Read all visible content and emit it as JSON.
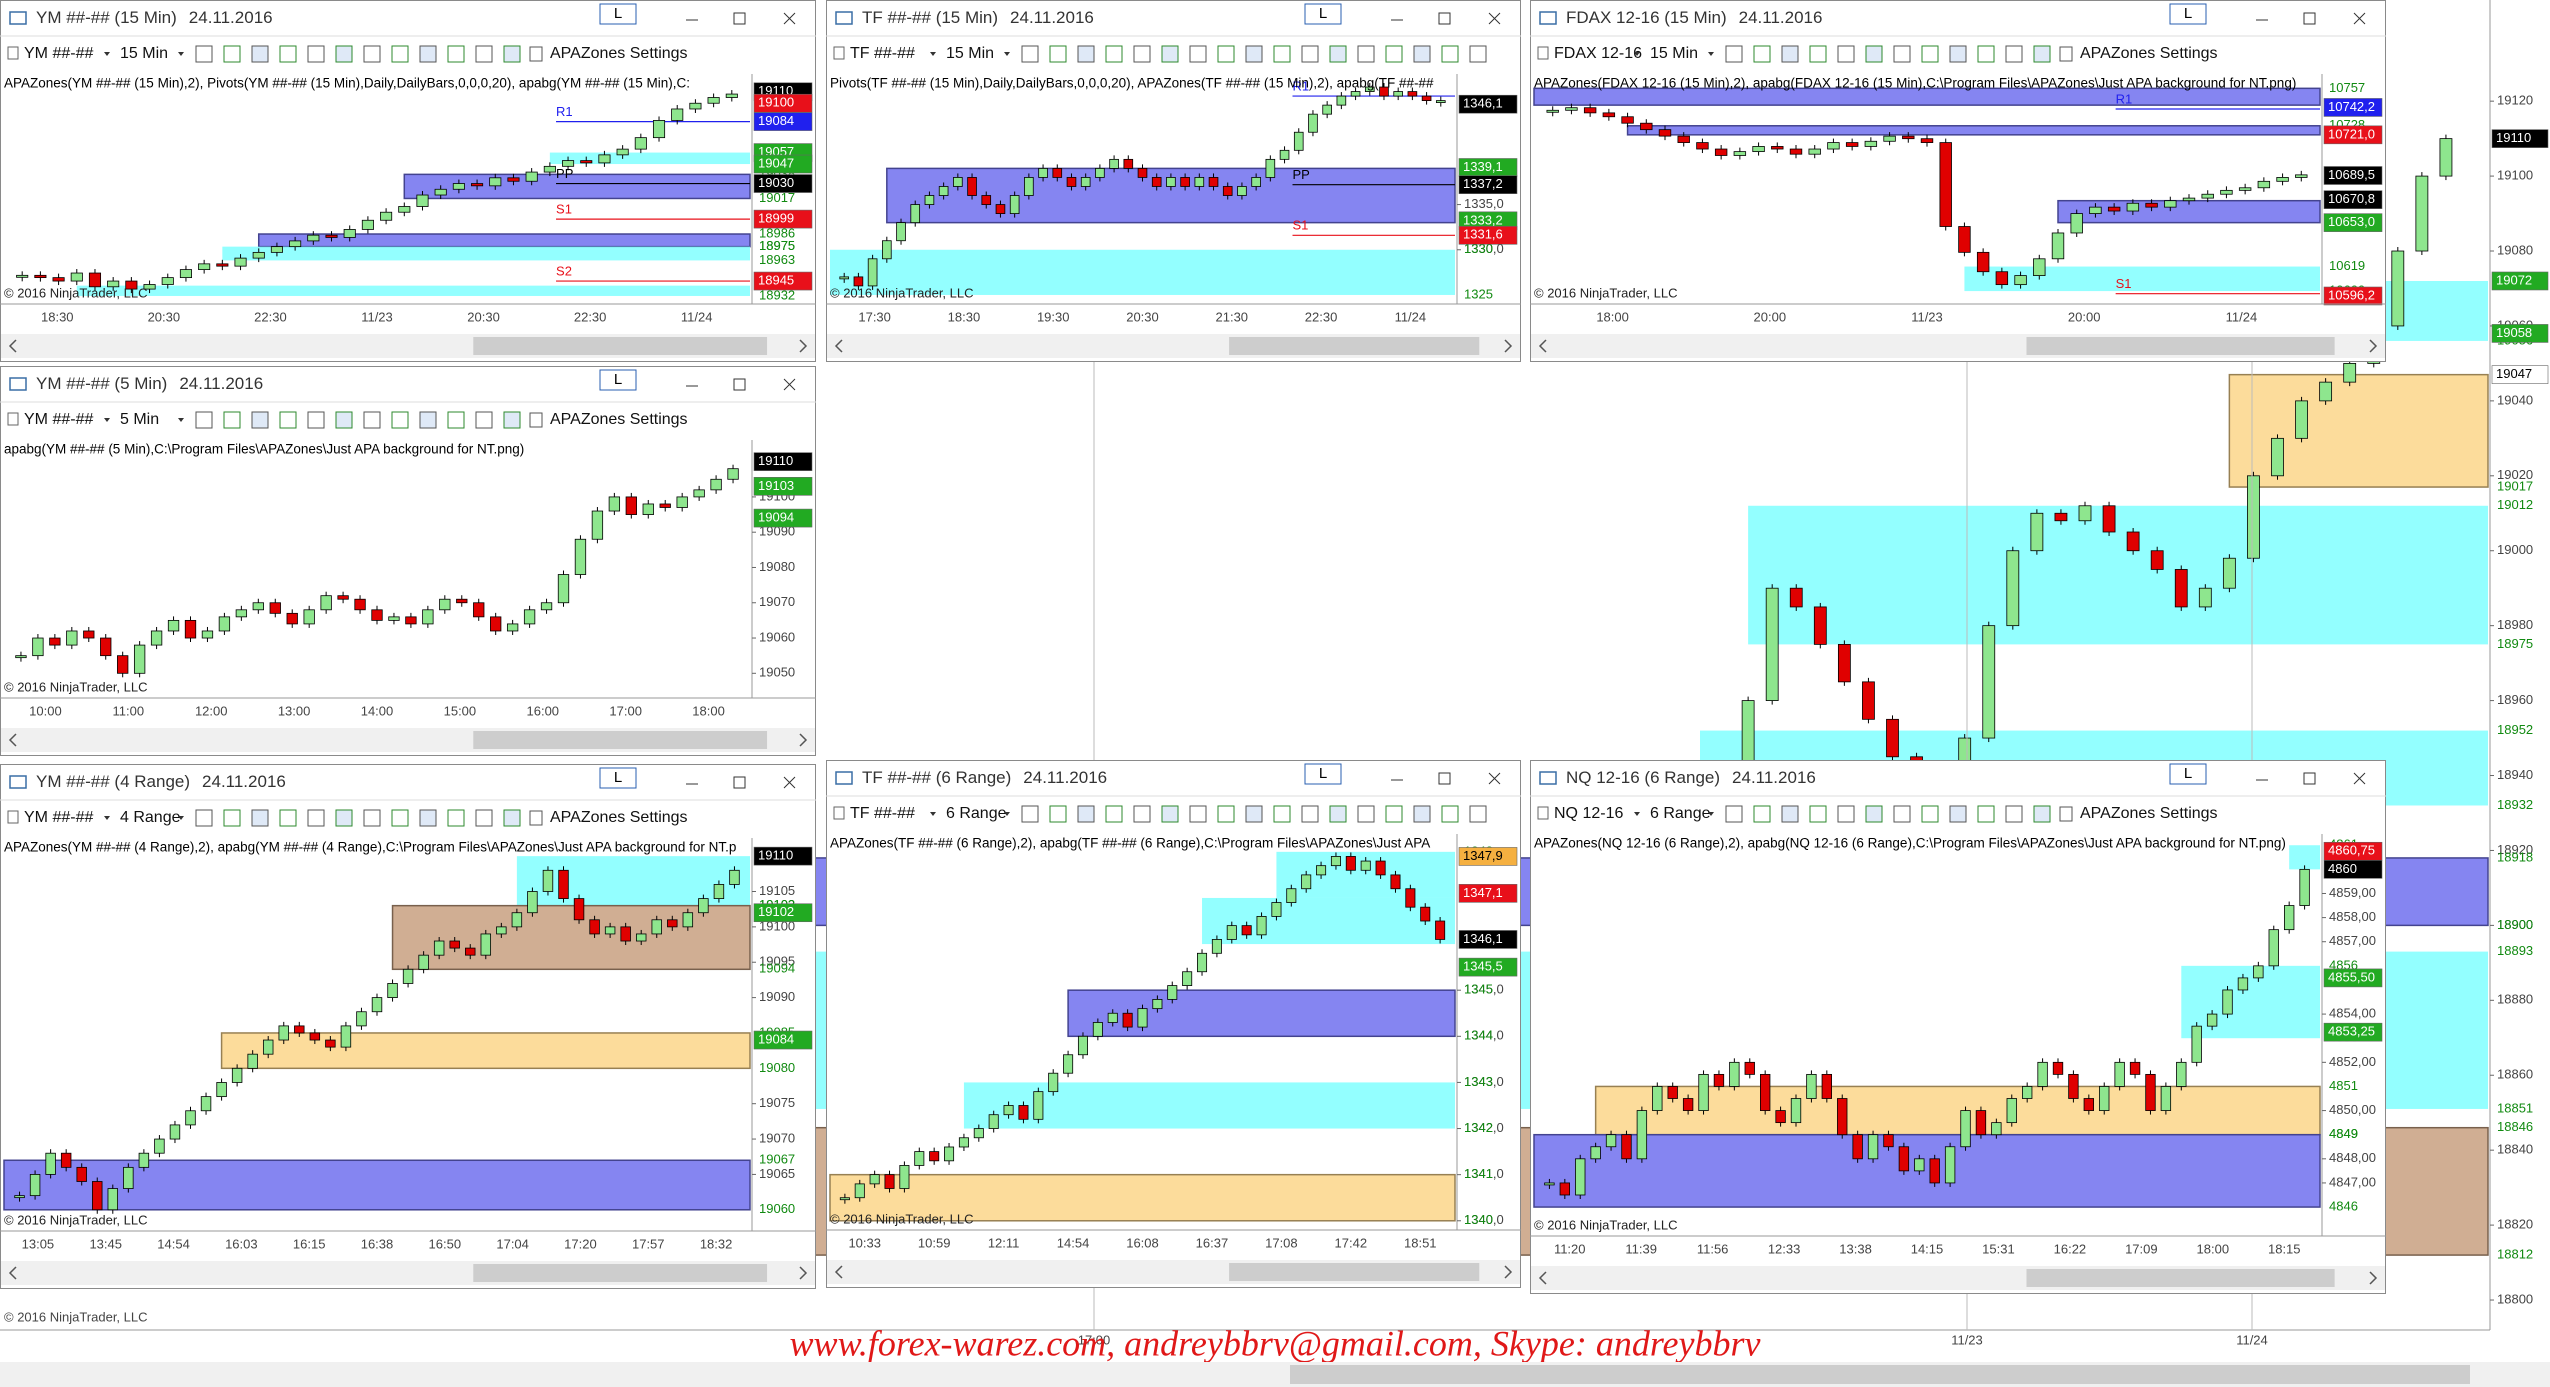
{
  "watermark": "www.forex-warez.com, andreybbrv@gmail.com, Skype: andreybbrv",
  "background": {
    "copyright": "© 2016 NinjaTrader, LLC",
    "ylim": [
      18792,
      19147
    ],
    "yticks": [
      18800,
      18820,
      18840,
      18860,
      18880,
      18900,
      18920,
      18940,
      18960,
      18980,
      19000,
      19020,
      19040,
      19060,
      19080,
      19100,
      19120
    ],
    "xlabels": [
      "17:00",
      "11/23",
      "11/24"
    ],
    "zones": [
      {
        "from": 19056,
        "to": 19072,
        "color": "#80ffff"
      },
      {
        "from": 19017,
        "to": 19047,
        "color": "#fcd68a"
      },
      {
        "from": 18975,
        "to": 19012,
        "color": "#80ffff"
      },
      {
        "from": 18932,
        "to": 18952,
        "color": "#80ffff"
      },
      {
        "from": 18900,
        "to": 18918,
        "color": "#7070ee"
      },
      {
        "from": 18851,
        "to": 18893,
        "color": "#80ffff"
      },
      {
        "from": 18812,
        "to": 18846,
        "color": "#c8a080"
      }
    ],
    "price_labels": [
      {
        "value": 19110,
        "bg": "#000000"
      },
      {
        "value": 19072,
        "bg": "#22aa22"
      },
      {
        "value": 19058,
        "bg": "#22aa22"
      },
      {
        "value": 19047,
        "bg": "#ffffff"
      }
    ],
    "closes": [
      18940,
      18960,
      18990,
      18985,
      18975,
      18965,
      18955,
      18945,
      18935,
      18925,
      18950,
      18980,
      19000,
      19010,
      19008,
      19012,
      19005,
      19000,
      18995,
      18985,
      18990,
      18998,
      19020,
      19030,
      19040,
      19045,
      19050,
      19060,
      19080,
      19100,
      19110
    ]
  },
  "windows": [
    {
      "title": "YM ##-## (15 Min)",
      "date": "24.11.2016",
      "button": "L",
      "instrument": "YM ##-##",
      "interval": "15 Min",
      "settings": "APAZones Settings",
      "indicator": "APAZones(YM ##-## (15 Min),2), Pivots(YM ##-## (15 Min),Daily,DailyBars,0,0,0,20), apabg(YM ##-## (15 Min),C:",
      "copyright": "© 2016 NinjaTrader, LLC",
      "ylim": [
        18925,
        19122
      ],
      "yticks": [],
      "xlabels": [
        "18:30",
        "20:30",
        "22:30",
        "11/23",
        "20:30",
        "22:30",
        "11/24"
      ],
      "zones": [
        {
          "from": 19047,
          "to": 19057,
          "color": "#80ffff"
        },
        {
          "from": 19017,
          "to": 19038,
          "color": "#7070ee"
        },
        {
          "from": 18975,
          "to": 18986,
          "color": "#7070ee"
        },
        {
          "from": 18963,
          "to": 18975,
          "color": "#80ffff"
        },
        {
          "from": 18932,
          "to": 18941,
          "color": "#80ffff"
        }
      ],
      "pivots": [
        {
          "name": "R1",
          "value": 19084,
          "color": "#2020ee"
        },
        {
          "name": "PP",
          "value": 19030,
          "color": "#000000"
        },
        {
          "name": "S1",
          "value": 18999,
          "color": "#e8101a"
        },
        {
          "name": "S2",
          "value": 18945,
          "color": "#e8101a"
        }
      ],
      "price_labels": [
        {
          "value": 19110,
          "bg": "#000000"
        },
        {
          "value": 19100,
          "bg": "#e8101a"
        },
        {
          "value": 19084,
          "bg": "#2020ee"
        },
        {
          "value": 19057,
          "bg": "#22aa22"
        },
        {
          "value": 19047,
          "bg": "#22aa22"
        },
        {
          "value": 19030,
          "bg": "#000000"
        },
        {
          "value": 18999,
          "bg": "#e8101a"
        },
        {
          "value": 18945,
          "bg": "#e8101a"
        }
      ],
      "closes": [
        18950,
        18948,
        18945,
        18952,
        18940,
        18945,
        18938,
        18942,
        18948,
        18955,
        18960,
        18958,
        18965,
        18970,
        18975,
        18980,
        18985,
        18983,
        18990,
        18998,
        19005,
        19010,
        19020,
        19025,
        19030,
        19028,
        19035,
        19032,
        19040,
        19045,
        19050,
        19048,
        19055,
        19060,
        19070,
        19085,
        19095,
        19100,
        19105,
        19108
      ]
    },
    {
      "title": "TF ##-## (15 Min)",
      "date": "24.11.2016",
      "button": "L",
      "instrument": "TF ##-##",
      "interval": "15 Min",
      "indicator": "Pivots(TF ##-## (15 Min),Daily,DailyBars,0,0,0,20), APAZones(TF ##-## (15 Min),2), apabg(TF ##-##",
      "copyright": "© 2016 NinjaTrader, LLC",
      "ylim": [
        1324,
        1349
      ],
      "yticks": [
        {
          "value": 1335,
          "label": "1335,0"
        },
        {
          "value": 1330,
          "label": "1330,0"
        }
      ],
      "xlabels": [
        "17:30",
        "18:30",
        "19:30",
        "20:30",
        "21:30",
        "22:30",
        "11/24"
      ],
      "zones": [
        {
          "from": 1333,
          "to": 1339,
          "color": "#7070ee"
        },
        {
          "from": 1325,
          "to": 1330,
          "color": "#80ffff"
        }
      ],
      "pivots": [
        {
          "name": "R1",
          "value": 1347,
          "color": "#2020ee"
        },
        {
          "name": "PP",
          "value": 1337.2,
          "color": "#000000"
        },
        {
          "name": "S1",
          "value": 1331.6,
          "color": "#e8101a"
        }
      ],
      "price_labels": [
        {
          "value": 1346.1,
          "label": "1346,1",
          "bg": "#000000"
        },
        {
          "value": 1339.1,
          "label": "1339,1",
          "bg": "#22aa22"
        },
        {
          "value": 1337.2,
          "label": "1337,2",
          "bg": "#000000"
        },
        {
          "value": 1333.2,
          "label": "1333,2",
          "bg": "#22aa22"
        },
        {
          "value": 1331.6,
          "label": "1331,6",
          "bg": "#e8101a"
        }
      ],
      "closes": [
        1327,
        1326,
        1329,
        1331,
        1333,
        1335,
        1336,
        1337,
        1338,
        1336,
        1335,
        1334,
        1336,
        1338,
        1339,
        1338,
        1337,
        1338,
        1339,
        1340,
        1339,
        1338,
        1337,
        1338,
        1337,
        1338,
        1337,
        1336,
        1337,
        1338,
        1340,
        1341,
        1343,
        1345,
        1346,
        1347,
        1347.5,
        1348,
        1347,
        1347.5,
        1347,
        1346.5,
        1346.5
      ]
    },
    {
      "title": "FDAX 12-16 (15 Min)",
      "date": "24.11.2016",
      "button": "L",
      "instrument": "FDAX 12-16",
      "interval": "15 Min",
      "settings": "APAZones Settings",
      "indicator": "APAZones(FDAX 12-16 (15 Min),2), apabg(FDAX 12-16 (15 Min),C:\\Program Files\\APAZones\\Just APA background for NT.png)",
      "copyright": "© 2016 NinjaTrader, LLC",
      "ylim": [
        10590,
        10765
      ],
      "yticks": [],
      "xlabels": [
        "18:00",
        "20:00",
        "11/23",
        "20:00",
        "11/24"
      ],
      "zones": [
        {
          "from": 10744,
          "to": 10757,
          "color": "#7070ee"
        },
        {
          "from": 10721,
          "to": 10728,
          "color": "#7070ee"
        },
        {
          "from": 10653,
          "to": 10670,
          "color": "#7070ee"
        },
        {
          "from": 10600,
          "to": 10619,
          "color": "#80ffff"
        }
      ],
      "pivots": [
        {
          "name": "R1",
          "value": 10741,
          "color": "#2020ee"
        },
        {
          "name": "S1",
          "value": 10598,
          "color": "#e8101a"
        }
      ],
      "price_labels": [
        {
          "value": 10742.2,
          "label": "10742,2",
          "bg": "#2020ee"
        },
        {
          "value": 10721,
          "label": "10721,0",
          "bg": "#e8101a"
        },
        {
          "value": 10689.5,
          "label": "10689,5",
          "bg": "#000000"
        },
        {
          "value": 10670.8,
          "label": "10670,8",
          "bg": "#000000"
        },
        {
          "value": 10653,
          "label": "10653,0",
          "bg": "#22aa22"
        },
        {
          "value": 10596.2,
          "label": "10596,2",
          "bg": "#e8101a"
        }
      ],
      "closes": [
        10740,
        10742,
        10738,
        10735,
        10730,
        10725,
        10720,
        10715,
        10710,
        10705,
        10708,
        10712,
        10710,
        10706,
        10710,
        10715,
        10712,
        10716,
        10720,
        10718,
        10715,
        10650,
        10630,
        10615,
        10605,
        10612,
        10625,
        10645,
        10660,
        10665,
        10662,
        10668,
        10665,
        10670,
        10672,
        10675,
        10678,
        10680,
        10685,
        10688,
        10690
      ]
    },
    {
      "title": "YM ##-## (5 Min)",
      "date": "24.11.2016",
      "button": "L",
      "instrument": "YM ##-##",
      "interval": "5 Min",
      "settings": "APAZones Settings",
      "indicator": "apabg(YM ##-## (5 Min),C:\\Program Files\\APAZones\\Just APA background for NT.png)",
      "copyright": "© 2016 NinjaTrader, LLC",
      "ylim": [
        19043,
        19115
      ],
      "yticks": [
        19100,
        19090,
        19080,
        19070,
        19060,
        19050
      ],
      "xlabels": [
        "10:00",
        "11:00",
        "12:00",
        "13:00",
        "14:00",
        "15:00",
        "16:00",
        "17:00",
        "18:00"
      ],
      "zones": [],
      "pivots": [],
      "price_labels": [
        {
          "value": 19110,
          "bg": "#000000"
        },
        {
          "value": 19103,
          "bg": "#22aa22"
        },
        {
          "value": 19094,
          "bg": "#22aa22"
        }
      ],
      "closes": [
        19055,
        19060,
        19058,
        19062,
        19060,
        19055,
        19050,
        19058,
        19062,
        19065,
        19060,
        19062,
        19066,
        19068,
        19070,
        19067,
        19064,
        19068,
        19072,
        19071,
        19068,
        19065,
        19066,
        19064,
        19068,
        19071,
        19070,
        19066,
        19062,
        19064,
        19068,
        19070,
        19078,
        19088,
        19096,
        19100,
        19095,
        19098,
        19097,
        19100,
        19102,
        19105,
        19108
      ]
    },
    {
      "title": "YM ##-## (4 Range)",
      "date": "24.11.2016",
      "button": "L",
      "instrument": "YM ##-##",
      "interval": "4 Range",
      "settings": "APAZones Settings",
      "indicator": "APAZones(YM ##-## (4 Range),2), apabg(YM ##-## (4 Range),C:\\Program Files\\APAZones\\Just APA background for NT.p",
      "copyright": "© 2016 NinjaTrader, LLC",
      "ylim": [
        19057,
        19112
      ],
      "yticks": [
        19105,
        19100,
        19095,
        19090,
        19075,
        19070,
        19065
      ],
      "xlabels": [
        "13:05",
        "13:45",
        "14:54",
        "16:03",
        "16:15",
        "16:38",
        "16:50",
        "17:04",
        "17:20",
        "17:57",
        "18:32"
      ],
      "zones": [
        {
          "from": 19103,
          "to": 19110,
          "color": "#80ffff"
        },
        {
          "from": 19094,
          "to": 19103,
          "color": "#c8a080"
        },
        {
          "from": 19080,
          "to": 19085,
          "color": "#fcd68a"
        },
        {
          "from": 19060,
          "to": 19067,
          "color": "#7070ee"
        }
      ],
      "pivots": [],
      "price_labels": [
        {
          "value": 19110,
          "bg": "#000000"
        },
        {
          "value": 19102,
          "bg": "#22aa22"
        },
        {
          "value": 19084,
          "bg": "#22aa22"
        }
      ],
      "closes": [
        19062,
        19065,
        19068,
        19066,
        19064,
        19060,
        19063,
        19066,
        19068,
        19070,
        19072,
        19074,
        19076,
        19078,
        19080,
        19082,
        19084,
        19086,
        19085,
        19084,
        19083,
        19086,
        19088,
        19090,
        19092,
        19094,
        19096,
        19098,
        19097,
        19096,
        19099,
        19100,
        19102,
        19105,
        19108,
        19104,
        19101,
        19099,
        19100,
        19098,
        19099,
        19101,
        19100,
        19102,
        19104,
        19106,
        19108
      ]
    },
    {
      "title": "TF ##-## (6 Range)",
      "date": "24.11.2016",
      "button": "L",
      "instrument": "TF ##-##",
      "interval": "6 Range",
      "indicator": "APAZones(TF ##-## (6 Range),2), apabg(TF ##-## (6 Range),C:\\Program Files\\APAZones\\Just APA",
      "copyright": "© 2016 NinjaTrader, LLC",
      "ylim": [
        1339.8,
        1348.3
      ],
      "yticks": [
        {
          "value": 1345,
          "label": "1345,0"
        },
        {
          "value": 1344,
          "label": "1344,0"
        },
        {
          "value": 1343,
          "label": "1343,0"
        },
        {
          "value": 1342,
          "label": "1342,0"
        },
        {
          "value": 1341,
          "label": "1341,0"
        },
        {
          "value": 1340,
          "label": "1340,0"
        }
      ],
      "xlabels": [
        "10:33",
        "10:59",
        "12:11",
        "14:54",
        "16:08",
        "16:37",
        "17:08",
        "17:42",
        "18:51"
      ],
      "zones": [
        {
          "from": 1347,
          "to": 1348,
          "color": "#80ffff"
        },
        {
          "from": 1346,
          "to": 1347,
          "color": "#80ffff"
        },
        {
          "from": 1344,
          "to": 1345,
          "color": "#7070ee"
        },
        {
          "from": 1342,
          "to": 1343,
          "color": "#80ffff"
        },
        {
          "from": 1340,
          "to": 1341,
          "color": "#fcd68a"
        }
      ],
      "pivots": [],
      "price_labels": [
        {
          "value": 1347.9,
          "label": "1347,9",
          "bg": "#f5b040"
        },
        {
          "value": 1347.1,
          "label": "1347,1",
          "bg": "#e8101a"
        },
        {
          "value": 1346.1,
          "label": "1346,1",
          "bg": "#000000"
        },
        {
          "value": 1345.5,
          "label": "1345,5",
          "bg": "#22aa22"
        }
      ],
      "closes": [
        1340.5,
        1340.8,
        1341,
        1340.7,
        1341.2,
        1341.5,
        1341.3,
        1341.6,
        1341.8,
        1342,
        1342.3,
        1342.5,
        1342.2,
        1342.8,
        1343.2,
        1343.6,
        1344,
        1344.3,
        1344.5,
        1344.2,
        1344.6,
        1344.8,
        1345.1,
        1345.4,
        1345.8,
        1346.1,
        1346.4,
        1346.2,
        1346.6,
        1346.9,
        1347.2,
        1347.5,
        1347.7,
        1347.9,
        1347.6,
        1347.8,
        1347.5,
        1347.2,
        1346.8,
        1346.5,
        1346.1
      ]
    },
    {
      "title": "NQ 12-16 (6 Range)",
      "date": "24.11.2016",
      "button": "L",
      "instrument": "NQ 12-16",
      "interval": "6 Range",
      "settings": "APAZones Settings",
      "indicator": "APAZones(NQ 12-16 (6 Range),2), apabg(NQ 12-16 (6 Range),C:\\Program Files\\APAZones\\Just APA background for NT.png)",
      "copyright": "© 2016 NinjaTrader, LLC",
      "ylim": [
        4844.8,
        4861.3
      ],
      "yticks": [
        {
          "value": 4859,
          "label": "4859,00"
        },
        {
          "value": 4858,
          "label": "4858,00"
        },
        {
          "value": 4857,
          "label": "4857,00"
        },
        {
          "value": 4854,
          "label": "4854,00"
        },
        {
          "value": 4852,
          "label": "4852,00"
        },
        {
          "value": 4850,
          "label": "4850,00"
        },
        {
          "value": 4848,
          "label": "4848,00"
        },
        {
          "value": 4847,
          "label": "4847,00"
        }
      ],
      "xlabels": [
        "11:20",
        "11:39",
        "11:56",
        "12:33",
        "13:38",
        "14:15",
        "15:31",
        "16:22",
        "17:09",
        "18:00",
        "18:15"
      ],
      "zones": [
        {
          "from": 4860,
          "to": 4861,
          "color": "#80ffff"
        },
        {
          "from": 4853,
          "to": 4856,
          "color": "#80ffff"
        },
        {
          "from": 4849,
          "to": 4851,
          "color": "#fcd68a"
        },
        {
          "from": 4846,
          "to": 4849,
          "color": "#7070ee"
        }
      ],
      "pivots": [],
      "price_labels": [
        {
          "value": 4860.75,
          "label": "4860,75",
          "bg": "#e8101a"
        },
        {
          "value": 4860,
          "bg": "#000000"
        },
        {
          "value": 4855.5,
          "label": "4855,50",
          "bg": "#22aa22"
        },
        {
          "value": 4853.25,
          "label": "4853,25",
          "bg": "#22aa22"
        }
      ],
      "closes": [
        4847,
        4846.5,
        4848,
        4848.5,
        4849,
        4848,
        4850,
        4851,
        4850.5,
        4850,
        4851.5,
        4851,
        4852,
        4851.5,
        4850,
        4849.5,
        4850.5,
        4851.5,
        4850.5,
        4849,
        4848,
        4849,
        4848.5,
        4847.5,
        4848,
        4847,
        4848.5,
        4850,
        4849,
        4849.5,
        4850.5,
        4851,
        4852,
        4851.5,
        4850.5,
        4850,
        4851,
        4852,
        4851.5,
        4850,
        4851,
        4852,
        4853.5,
        4854,
        4855,
        4855.5,
        4856,
        4857.5,
        4858.5,
        4860
      ]
    }
  ]
}
